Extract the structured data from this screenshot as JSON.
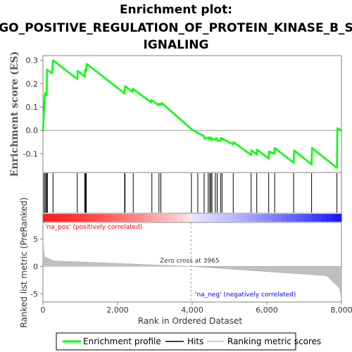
{
  "title_lines": [
    "Enrichment plot:",
    "GO_POSITIVE_REGULATION_OF_PROTEIN_KINASE_B_S",
    "IGNALING"
  ],
  "chart_data": {
    "type": "line",
    "es_panel": {
      "ylabel": "Enrichment score (ES)",
      "ylim": [
        -0.18,
        0.32
      ],
      "yticks": [
        -0.1,
        0.0,
        0.1,
        0.2,
        0.3
      ],
      "series": [
        {
          "name": "Enrichment profile",
          "color": "#00ff00",
          "x": [
            0,
            50,
            60,
            100,
            110,
            240,
            270,
            920,
            930,
            1120,
            1130,
            1160,
            1170,
            2190,
            2200,
            2400,
            2410,
            2900,
            2910,
            3100,
            3110,
            3170,
            3180,
            4000,
            4320,
            4330,
            4440,
            4450,
            4480,
            4490,
            4520,
            4530,
            4620,
            4640,
            4660,
            4680,
            4760,
            4770,
            4800,
            4810,
            5100,
            5110,
            5580,
            5590,
            5730,
            5740,
            6050,
            6060,
            6200,
            6210,
            6720,
            6730,
            7200,
            7210,
            7880,
            7890,
            8000
          ],
          "y": [
            -0.005,
            0.15,
            0.16,
            0.15,
            0.26,
            0.245,
            0.3,
            0.22,
            0.255,
            0.23,
            0.26,
            0.255,
            0.285,
            0.158,
            0.19,
            0.165,
            0.178,
            0.12,
            0.13,
            0.108,
            0.115,
            0.11,
            0.118,
            0.003,
            -0.025,
            -0.035,
            -0.03,
            -0.04,
            -0.032,
            -0.03,
            -0.042,
            -0.035,
            -0.04,
            -0.032,
            -0.035,
            -0.045,
            -0.042,
            -0.032,
            -0.04,
            -0.035,
            -0.06,
            -0.05,
            -0.105,
            -0.085,
            -0.103,
            -0.082,
            -0.12,
            -0.09,
            -0.1,
            -0.075,
            -0.138,
            -0.085,
            -0.145,
            -0.075,
            -0.16,
            0.01,
            0.0
          ]
        }
      ]
    },
    "hits_panel": {
      "hits": [
        30,
        60,
        90,
        100,
        120,
        270,
        920,
        1120,
        1140,
        1160,
        2190,
        2200,
        2420,
        2920,
        3110,
        3160,
        3980,
        4150,
        4320,
        4430,
        4470,
        4500,
        4530,
        4620,
        4670,
        4760,
        4800,
        5100,
        5580,
        5730,
        6050,
        6210,
        6720,
        7200,
        7880
      ]
    },
    "rank_panel": {
      "ylabel": "Ranked list metric (PreRanked)",
      "ylim": [
        -6.5,
        8
      ],
      "yticks": [
        -5,
        0,
        5
      ],
      "zero_cross_label": "Zero cross at 3965",
      "zero_cross": 3965,
      "pos_label": "'na_pos' (positively correlated)",
      "neg_label": "'na_neg' (negatively correlated)",
      "color": "#c0c0c0"
    },
    "xaxis": {
      "label": "Rank in Ordered Dataset",
      "xlim": [
        0,
        8000
      ],
      "xticks": [
        0,
        2000,
        4000,
        6000,
        8000
      ],
      "xtick_labels": [
        "0",
        "2,000",
        "4,000",
        "6,000",
        "8,000"
      ]
    }
  },
  "legend": {
    "items": [
      {
        "label": "Enrichment profile",
        "color": "#00ff00"
      },
      {
        "label": "Hits",
        "color": "#000000"
      },
      {
        "label": "Ranking metric scores",
        "color": "#c0c0c0"
      }
    ]
  },
  "colors": {
    "pos_label": "#ff0000",
    "neg_label": "#0000ff",
    "frame": "#808080"
  }
}
